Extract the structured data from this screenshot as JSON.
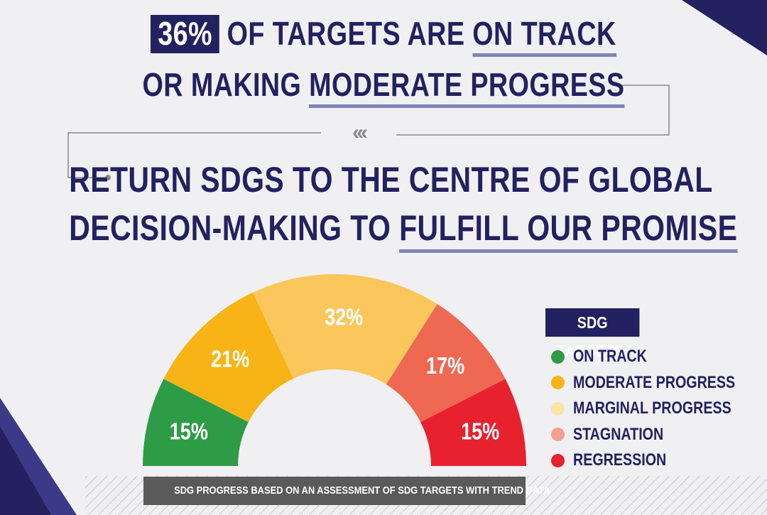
{
  "headline": {
    "line1_highlight": "36%",
    "line1_middle": " OF TARGETS ARE ",
    "line1_underlined": "ON TRACK",
    "line2_prefix": "OR MAKING ",
    "line2_underlined": "MODERATE PROGRESS"
  },
  "divider": {
    "chevrons": "‹‹‹"
  },
  "callout": {
    "line1": "RETURN SDGS TO THE CENTRE OF GLOBAL",
    "line2_prefix": "DECISION-MAKING TO ",
    "line2_underlined": "FULFILL OUR PROMISE"
  },
  "chart_data": {
    "type": "pie",
    "subtype": "half-donut",
    "title": "",
    "slices": [
      {
        "label": "ON TRACK",
        "value": 15,
        "display": "15%",
        "color": "#2e9c47"
      },
      {
        "label": "MODERATE PROGRESS",
        "value": 21,
        "display": "21%",
        "color": "#f8b416"
      },
      {
        "label": "MARGINAL PROGRESS",
        "value": 32,
        "display": "32%",
        "color": "#fbc75c"
      },
      {
        "label": "STAGNATION",
        "value": 17,
        "display": "17%",
        "color": "#ef6852"
      },
      {
        "label": "REGRESSION",
        "value": 15,
        "display": "15%",
        "color": "#e8212f"
      }
    ]
  },
  "legend": {
    "title": "SDG TARGETS:",
    "items": [
      {
        "label": "ON TRACK",
        "color": "#2e9c47"
      },
      {
        "label": "MODERATE PROGRESS",
        "color": "#f8b416"
      },
      {
        "label": "MARGINAL PROGRESS",
        "color": "#fde3a4"
      },
      {
        "label": "STAGNATION",
        "color": "#f2a091"
      },
      {
        "label": "REGRESSION",
        "color": "#e8212f"
      }
    ]
  },
  "footer": {
    "caption": "SDG PROGRESS BASED ON AN ASSESSMENT OF SDG TARGETS WITH TREND DATA"
  },
  "colors": {
    "navy": "#23215f",
    "underline": "#7d84b6",
    "background": "#f0f0f2"
  }
}
